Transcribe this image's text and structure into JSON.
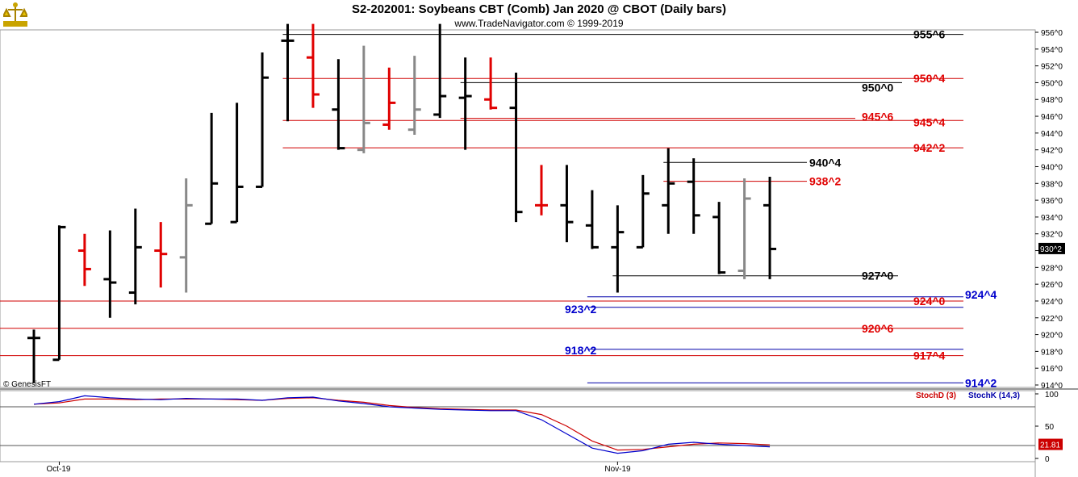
{
  "header": {
    "title": "S2-202001:  Soybeans CBT (Comb) Jan 2020 @ CBOT  (Daily bars)",
    "subtitle": "www.TradeNavigator.com © 1999-2019"
  },
  "copyright": "© GenesisFT",
  "colors": {
    "up": "#e00000",
    "down": "#000000",
    "neutral": "#888888",
    "support": "#0000cc",
    "resistance": "#cc0000"
  },
  "chart_data": {
    "type": "ohlc",
    "price_axis": {
      "min": 914,
      "max": 956,
      "ticks": [
        "956^0",
        "954^0",
        "952^0",
        "950^0",
        "948^0",
        "946^0",
        "944^0",
        "942^0",
        "940^0",
        "938^0",
        "936^0",
        "934^0",
        "932^0",
        "930^0",
        "928^0",
        "926^0",
        "924^0",
        "922^0",
        "920^0",
        "918^0",
        "916^0",
        "914^0"
      ]
    },
    "last_price_label": "930^2",
    "last_price": 930.25,
    "x_labels": [
      {
        "label": "Oct-19",
        "bar": 1
      },
      {
        "label": "Nov-19",
        "bar": 23
      }
    ],
    "bars": [
      {
        "o": 919.6,
        "h": 920.6,
        "l": 914.2,
        "c": 919.6,
        "color": "black"
      },
      {
        "o": 917.0,
        "h": 933.0,
        "l": 917.0,
        "c": 932.8,
        "color": "black"
      },
      {
        "o": 930.0,
        "h": 932.0,
        "l": 925.8,
        "c": 927.8,
        "color": "red"
      },
      {
        "o": 926.6,
        "h": 932.4,
        "l": 922.0,
        "c": 926.2,
        "color": "black"
      },
      {
        "o": 925.0,
        "h": 935.0,
        "l": 923.6,
        "c": 930.4,
        "color": "black"
      },
      {
        "o": 930.0,
        "h": 933.4,
        "l": 925.6,
        "c": 929.6,
        "color": "red"
      },
      {
        "o": 929.2,
        "h": 938.6,
        "l": 925.0,
        "c": 935.4,
        "color": "gray"
      },
      {
        "o": 933.2,
        "h": 946.4,
        "l": 933.2,
        "c": 938.0,
        "color": "black"
      },
      {
        "o": 933.4,
        "h": 947.6,
        "l": 933.4,
        "c": 937.6,
        "color": "black"
      },
      {
        "o": 937.6,
        "h": 953.6,
        "l": 937.6,
        "c": 950.6,
        "color": "black"
      },
      {
        "o": 955.0,
        "h": 957.0,
        "l": 945.4,
        "c": 955.0,
        "color": "black"
      },
      {
        "o": 953.0,
        "h": 957.0,
        "l": 947.0,
        "c": 948.6,
        "color": "red"
      },
      {
        "o": 946.8,
        "h": 952.8,
        "l": 942.0,
        "c": 942.2,
        "color": "black"
      },
      {
        "o": 942.0,
        "h": 954.4,
        "l": 941.6,
        "c": 945.2,
        "color": "gray"
      },
      {
        "o": 945.0,
        "h": 951.8,
        "l": 944.4,
        "c": 947.6,
        "color": "red"
      },
      {
        "o": 944.4,
        "h": 953.2,
        "l": 943.8,
        "c": 946.8,
        "color": "gray"
      },
      {
        "o": 946.2,
        "h": 957.0,
        "l": 945.8,
        "c": 948.4,
        "color": "black"
      },
      {
        "o": 948.2,
        "h": 953.0,
        "l": 942.0,
        "c": 948.4,
        "color": "black"
      },
      {
        "o": 948.0,
        "h": 953.0,
        "l": 946.8,
        "c": 947.0,
        "color": "red"
      },
      {
        "o": 947.0,
        "h": 951.2,
        "l": 933.4,
        "c": 934.6,
        "color": "black"
      },
      {
        "o": 935.4,
        "h": 940.2,
        "l": 934.2,
        "c": 935.4,
        "color": "red"
      },
      {
        "o": 935.4,
        "h": 940.2,
        "l": 931.0,
        "c": 933.4,
        "color": "black"
      },
      {
        "o": 933.0,
        "h": 937.2,
        "l": 930.2,
        "c": 930.4,
        "color": "black"
      },
      {
        "o": 930.4,
        "h": 935.4,
        "l": 925.0,
        "c": 932.2,
        "color": "black"
      },
      {
        "o": 930.4,
        "h": 939.0,
        "l": 930.4,
        "c": 936.8,
        "color": "black"
      },
      {
        "o": 935.4,
        "h": 942.2,
        "l": 932.0,
        "c": 938.0,
        "color": "black"
      },
      {
        "o": 938.2,
        "h": 941.0,
        "l": 932.0,
        "c": 934.2,
        "color": "black"
      },
      {
        "o": 934.0,
        "h": 935.8,
        "l": 927.2,
        "c": 927.4,
        "color": "black"
      },
      {
        "o": 927.6,
        "h": 938.6,
        "l": 926.6,
        "c": 936.2,
        "color": "gray"
      },
      {
        "o": 935.4,
        "h": 938.8,
        "l": 926.6,
        "c": 930.2,
        "color": "black"
      }
    ],
    "levels": [
      {
        "label": "955^6",
        "value": 955.75,
        "color": "black",
        "from_bar": 10
      },
      {
        "label": "950^4",
        "value": 950.5,
        "color": "red",
        "from_bar": 10
      },
      {
        "label": "950^0",
        "value": 950.0,
        "color": "black",
        "from_bar": 17
      },
      {
        "label": "945^6",
        "value": 945.75,
        "color": "red",
        "from_bar": 17
      },
      {
        "label": "945^4",
        "value": 945.5,
        "color": "red",
        "from_bar": 10
      },
      {
        "label": "942^2",
        "value": 942.25,
        "color": "red",
        "from_bar": 10
      },
      {
        "label": "940^4",
        "value": 940.5,
        "color": "black",
        "from_bar": 25
      },
      {
        "label": "938^2",
        "value": 938.25,
        "color": "red",
        "from_bar": 25
      },
      {
        "label": "927^0",
        "value": 927.0,
        "color": "black",
        "from_bar": 23
      },
      {
        "label": "924^4",
        "value": 924.5,
        "color": "blue",
        "from_bar": 22
      },
      {
        "label": "924^0",
        "value": 924.0,
        "color": "red",
        "from_bar": 0
      },
      {
        "label": "923^2",
        "value": 923.25,
        "color": "blue",
        "from_bar": 22
      },
      {
        "label": "920^6",
        "value": 920.75,
        "color": "red",
        "from_bar": 0
      },
      {
        "label": "918^2",
        "value": 918.25,
        "color": "blue",
        "from_bar": 22
      },
      {
        "label": "917^4",
        "value": 917.5,
        "color": "red",
        "from_bar": 0
      },
      {
        "label": "914^2",
        "value": 914.25,
        "color": "blue",
        "from_bar": 22
      }
    ],
    "stochastic": {
      "labels": [
        "StochD (3)",
        "StochK (14,3)"
      ],
      "axis_ticks": [
        "100",
        "50",
        "0"
      ],
      "ref_levels": [
        80,
        20
      ],
      "last_value": "21.81",
      "k_values": [
        84,
        88,
        97,
        94,
        92,
        91,
        93,
        92,
        92,
        90,
        94,
        95,
        89,
        85,
        80,
        78,
        76,
        75,
        74,
        74,
        60,
        38,
        16,
        8,
        12,
        22,
        25,
        22,
        20,
        18
      ],
      "d_values": [
        84,
        86,
        92,
        92,
        91,
        92,
        92,
        92,
        91,
        90,
        93,
        94,
        90,
        87,
        82,
        79,
        77,
        76,
        75,
        75,
        68,
        50,
        27,
        13,
        14,
        18,
        22,
        24,
        23,
        21
      ]
    }
  }
}
